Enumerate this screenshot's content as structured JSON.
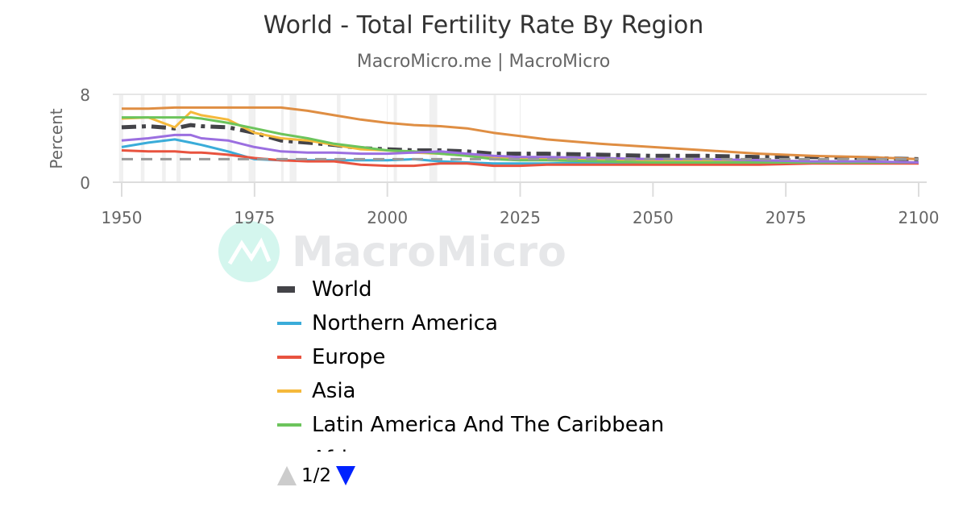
{
  "title": "World - Total Fertility Rate By Region",
  "subtitle": "MacroMicro.me | MacroMicro",
  "watermark": "MacroMicro",
  "legend_nav": {
    "page": "1/2",
    "up_icon": "triangle-up-icon",
    "down_icon": "triangle-down-icon"
  },
  "chart_data": {
    "type": "line",
    "title": "World - Total Fertility Rate By Region",
    "ylabel": "Percent",
    "xlabel": "",
    "xlim": [
      1950,
      2100
    ],
    "ylim": [
      0,
      8
    ],
    "x_ticks": [
      "1950",
      "1975",
      "2000",
      "2025",
      "2050",
      "2075",
      "2100"
    ],
    "y_ticks": [
      "0",
      "8"
    ],
    "grid": true,
    "legend_placement": "bottom",
    "shaded_periods": [
      [
        1949.5,
        1950.3
      ],
      [
        1953.6,
        1954.3
      ],
      [
        1957.6,
        1958.3
      ],
      [
        1960.3,
        1961.1
      ],
      [
        1969.9,
        1970.8
      ],
      [
        1973.9,
        1975.2
      ],
      [
        1980,
        1980.5
      ],
      [
        1981.6,
        1982.9
      ],
      [
        1990.5,
        1991.2
      ],
      [
        2001.2,
        2001.8
      ],
      [
        2007.9,
        2009.4
      ],
      [
        2020,
        2020.3
      ]
    ],
    "x": [
      1950,
      1955,
      1960,
      1963,
      1965,
      1970,
      1975,
      1980,
      1985,
      1990,
      1995,
      2000,
      2005,
      2010,
      2015,
      2020,
      2025,
      2030,
      2040,
      2050,
      2060,
      2070,
      2080,
      2090,
      2100
    ],
    "series": [
      {
        "name": "World",
        "color": "#434348",
        "dash": true,
        "values": [
          5.0,
          5.1,
          4.9,
          5.2,
          5.1,
          5.0,
          4.5,
          3.8,
          3.6,
          3.4,
          3.1,
          3.0,
          2.9,
          2.9,
          2.8,
          2.6,
          2.6,
          2.6,
          2.5,
          2.4,
          2.4,
          2.3,
          2.3,
          2.2,
          2.1
        ]
      },
      {
        "name": "Northern America",
        "color": "#3aacd9",
        "values": [
          3.2,
          3.6,
          3.9,
          3.6,
          3.4,
          2.8,
          2.1,
          2.0,
          2.0,
          2.0,
          2.0,
          2.0,
          2.1,
          1.9,
          1.8,
          1.7,
          1.7,
          1.7,
          1.8,
          1.8,
          1.8,
          1.8,
          1.8,
          1.8,
          1.8
        ]
      },
      {
        "name": "Europe",
        "color": "#e8533f",
        "values": [
          2.9,
          2.8,
          2.8,
          2.7,
          2.7,
          2.5,
          2.2,
          2.0,
          1.9,
          1.9,
          1.6,
          1.5,
          1.5,
          1.7,
          1.7,
          1.5,
          1.5,
          1.6,
          1.6,
          1.6,
          1.6,
          1.6,
          1.7,
          1.7,
          1.7
        ]
      },
      {
        "name": "Asia",
        "color": "#f5b93b",
        "values": [
          5.8,
          5.9,
          5.0,
          6.4,
          6.1,
          5.7,
          4.5,
          4.0,
          3.8,
          3.4,
          3.0,
          2.9,
          2.7,
          2.6,
          2.4,
          2.2,
          2.1,
          2.1,
          2.0,
          2.0,
          1.9,
          1.9,
          1.9,
          1.8,
          1.8
        ]
      },
      {
        "name": "Latin America And The Caribbean",
        "color": "#6cc45c",
        "values": [
          5.9,
          5.9,
          5.9,
          5.9,
          5.8,
          5.4,
          4.9,
          4.4,
          4.0,
          3.5,
          3.2,
          2.9,
          2.8,
          2.6,
          2.4,
          2.1,
          2.0,
          2.0,
          1.9,
          1.8,
          1.8,
          1.8,
          1.8,
          1.8,
          1.8
        ]
      },
      {
        "name": "Africa",
        "color": "#df8e43",
        "values": [
          6.7,
          6.7,
          6.8,
          6.8,
          6.8,
          6.8,
          6.8,
          6.8,
          6.5,
          6.1,
          5.7,
          5.4,
          5.2,
          5.1,
          4.9,
          4.5,
          4.2,
          3.9,
          3.5,
          3.2,
          2.9,
          2.6,
          2.4,
          2.3,
          2.1
        ]
      },
      {
        "color": "#9b6fe0",
        "values": [
          3.8,
          4.0,
          4.3,
          4.3,
          4.0,
          3.8,
          3.2,
          2.8,
          2.7,
          2.7,
          2.6,
          2.6,
          2.7,
          2.8,
          2.6,
          2.4,
          2.3,
          2.3,
          2.2,
          2.1,
          2.1,
          2.0,
          1.9,
          1.9,
          1.8
        ]
      },
      {
        "color": "#999999",
        "dash": "gray",
        "values": [
          2.1,
          2.1,
          2.1,
          2.1,
          2.1,
          2.1,
          2.1,
          2.1,
          2.1,
          2.1,
          2.1,
          2.1,
          2.1,
          2.1,
          2.1,
          2.1,
          2.1,
          2.1,
          2.1,
          2.1,
          2.1,
          2.1,
          2.1,
          2.1,
          2.1
        ]
      }
    ]
  }
}
